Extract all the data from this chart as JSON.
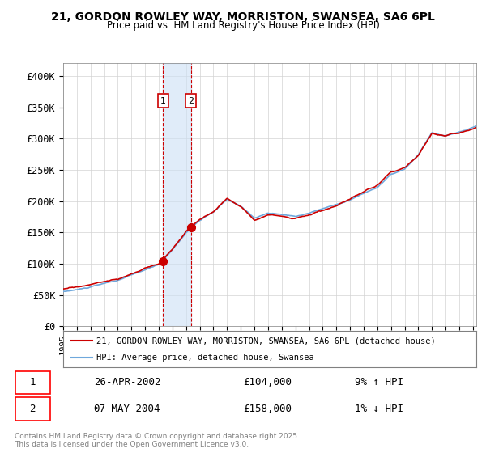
{
  "title_line1": "21, GORDON ROWLEY WAY, MORRISTON, SWANSEA, SA6 6PL",
  "title_line2": "Price paid vs. HM Land Registry's House Price Index (HPI)",
  "ylabel": "",
  "xlabel": "",
  "ylim": [
    0,
    420000
  ],
  "yticks": [
    0,
    50000,
    100000,
    150000,
    200000,
    250000,
    300000,
    350000,
    400000
  ],
  "ytick_labels": [
    "£0",
    "£50K",
    "£100K",
    "£150K",
    "£200K",
    "£250K",
    "£300K",
    "£350K",
    "£400K"
  ],
  "sale1_date": "2002-04-26",
  "sale1_price": 104000,
  "sale1_label": "1",
  "sale2_date": "2004-05-07",
  "sale2_price": 158000,
  "sale2_label": "2",
  "hpi_color": "#6fa8dc",
  "price_color": "#cc0000",
  "sale_marker_color": "#cc0000",
  "shade_color": "#cce0f5",
  "legend_label_price": "21, GORDON ROWLEY WAY, MORRISTON, SWANSEA, SA6 6PL (detached house)",
  "legend_label_hpi": "HPI: Average price, detached house, Swansea",
  "footnote": "Contains HM Land Registry data © Crown copyright and database right 2025.\nThis data is licensed under the Open Government Licence v3.0.",
  "table_row1": [
    "1",
    "26-APR-2002",
    "£104,000",
    "9% ↑ HPI"
  ],
  "table_row2": [
    "2",
    "07-MAY-2004",
    "£158,000",
    "1% ↓ HPI"
  ],
  "anchors_hpi": {
    "1995.0": 55000,
    "1996.0": 58000,
    "1997.0": 62000,
    "1998.0": 67000,
    "1999.0": 72000,
    "2000.0": 80000,
    "2001.0": 88000,
    "2002.0": 96000,
    "2003.0": 120000,
    "2004.0": 148000,
    "2005.0": 168000,
    "2006.0": 180000,
    "2007.0": 200000,
    "2008.0": 188000,
    "2009.0": 170000,
    "2010.0": 178000,
    "2011.0": 175000,
    "2012.0": 172000,
    "2013.0": 178000,
    "2014.0": 185000,
    "2015.0": 192000,
    "2016.0": 200000,
    "2017.0": 210000,
    "2018.0": 220000,
    "2019.0": 240000,
    "2020.0": 248000,
    "2021.0": 270000,
    "2022.0": 305000,
    "2023.0": 300000,
    "2024.0": 305000,
    "2025.33": 315000
  }
}
